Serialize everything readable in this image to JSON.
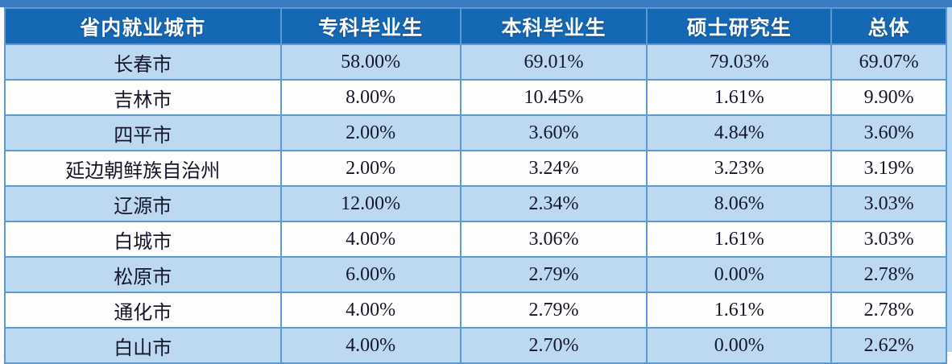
{
  "colors": {
    "header_bg": "#1568B4",
    "header_text": "#FFFFFF",
    "row_light_bg": "#BDD9F2",
    "row_white_bg": "#FEFEFF",
    "border": "#5B9BD5",
    "top_bar": "#3A7CC2",
    "data_text": "#16162A"
  },
  "table": {
    "columns": [
      "省内就业城市",
      "专科毕业生",
      "本科毕业生",
      "硕士研究生",
      "总体"
    ],
    "rows": [
      {
        "city": "长春市",
        "values": [
          "58.00%",
          "69.01%",
          "79.03%",
          "69.07%"
        ]
      },
      {
        "city": "吉林市",
        "values": [
          "8.00%",
          "10.45%",
          "1.61%",
          "9.90%"
        ]
      },
      {
        "city": "四平市",
        "values": [
          "2.00%",
          "3.60%",
          "4.84%",
          "3.60%"
        ]
      },
      {
        "city": "延边朝鲜族自治州",
        "values": [
          "2.00%",
          "3.24%",
          "3.23%",
          "3.19%"
        ]
      },
      {
        "city": "辽源市",
        "values": [
          "12.00%",
          "2.34%",
          "8.06%",
          "3.03%"
        ]
      },
      {
        "city": "白城市",
        "values": [
          "4.00%",
          "3.06%",
          "1.61%",
          "3.03%"
        ]
      },
      {
        "city": "松原市",
        "values": [
          "6.00%",
          "2.79%",
          "0.00%",
          "2.78%"
        ]
      },
      {
        "city": "通化市",
        "values": [
          "4.00%",
          "2.79%",
          "1.61%",
          "2.78%"
        ]
      },
      {
        "city": "白山市",
        "values": [
          "4.00%",
          "2.70%",
          "0.00%",
          "2.62%"
        ]
      }
    ]
  },
  "chart_data": {
    "type": "table",
    "title": "",
    "categories": [
      "长春市",
      "吉林市",
      "四平市",
      "延边朝鲜族自治州",
      "辽源市",
      "白城市",
      "松原市",
      "通化市",
      "白山市"
    ],
    "series": [
      {
        "name": "专科毕业生",
        "values": [
          58.0,
          8.0,
          2.0,
          2.0,
          12.0,
          4.0,
          6.0,
          4.0,
          4.0
        ]
      },
      {
        "name": "本科毕业生",
        "values": [
          69.01,
          10.45,
          3.6,
          3.24,
          2.34,
          3.06,
          2.79,
          2.79,
          2.7
        ]
      },
      {
        "name": "硕士研究生",
        "values": [
          79.03,
          1.61,
          4.84,
          3.23,
          8.06,
          1.61,
          0.0,
          1.61,
          0.0
        ]
      },
      {
        "name": "总体",
        "values": [
          69.07,
          9.9,
          3.6,
          3.19,
          3.03,
          3.03,
          2.78,
          2.78,
          2.62
        ]
      }
    ],
    "unit": "%"
  }
}
